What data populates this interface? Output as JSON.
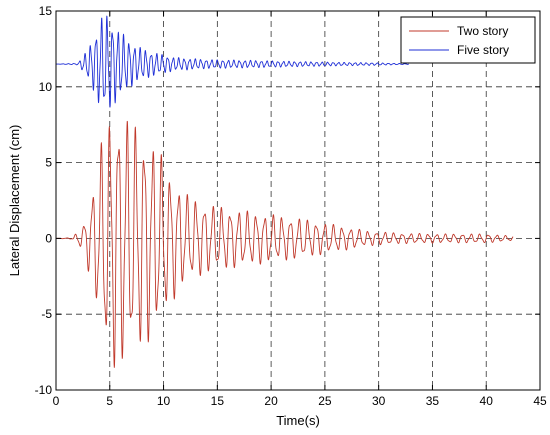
{
  "chart_data": {
    "type": "line",
    "title": "",
    "xlabel": "Time(s)",
    "ylabel": "Lateral Displacement (cm)",
    "xlim": [
      0,
      45
    ],
    "ylim": [
      -10,
      15
    ],
    "xticks": [
      0,
      5,
      10,
      15,
      20,
      25,
      30,
      35,
      40,
      45
    ],
    "yticks": [
      -10,
      -5,
      0,
      5,
      10,
      15
    ],
    "grid": true,
    "grid_style": "dashed",
    "legend_position": "top-right",
    "series": [
      {
        "name": "Two story",
        "color": "#c0392b",
        "baseline": 0,
        "frequency_hz": 1.25,
        "envelope": [
          [
            0,
            0.0
          ],
          [
            1.5,
            0.05
          ],
          [
            2.5,
            0.8
          ],
          [
            3.5,
            3.5
          ],
          [
            4.5,
            7.5
          ],
          [
            5.5,
            8.8
          ],
          [
            6.5,
            8.2
          ],
          [
            7.5,
            7.5
          ],
          [
            8.5,
            7.0
          ],
          [
            9.5,
            6.0
          ],
          [
            10.5,
            4.5
          ],
          [
            12,
            3.0
          ],
          [
            14,
            2.3
          ],
          [
            17,
            1.9
          ],
          [
            20,
            1.6
          ],
          [
            23,
            1.3
          ],
          [
            26,
            0.9
          ],
          [
            29,
            0.5
          ],
          [
            32,
            0.35
          ],
          [
            36,
            0.3
          ],
          [
            40,
            0.3
          ],
          [
            42.5,
            0.15
          ]
        ]
      },
      {
        "name": "Five story",
        "color": "#1f2fd6",
        "baseline": 11.5,
        "frequency_hz": 1.95,
        "envelope": [
          [
            0,
            0.0
          ],
          [
            2.0,
            0.05
          ],
          [
            2.8,
            0.8
          ],
          [
            3.5,
            1.8
          ],
          [
            4.2,
            3.2
          ],
          [
            4.8,
            3.3
          ],
          [
            5.5,
            2.6
          ],
          [
            6.5,
            1.8
          ],
          [
            7.5,
            1.2
          ],
          [
            9,
            0.8
          ],
          [
            11,
            0.45
          ],
          [
            14,
            0.3
          ],
          [
            18,
            0.25
          ],
          [
            22,
            0.18
          ],
          [
            26,
            0.12
          ],
          [
            30,
            0.08
          ],
          [
            32.8,
            0.02
          ]
        ]
      }
    ]
  }
}
